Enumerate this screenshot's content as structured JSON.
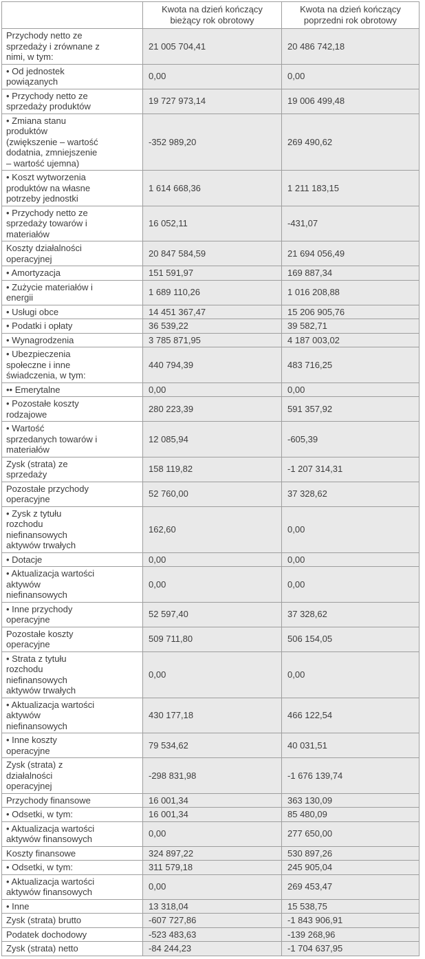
{
  "colors": {
    "value_cell_bg": "#e9e9e9",
    "label_cell_bg": "#ffffff",
    "border": "#9d9d9d",
    "text": "#3d3d3d"
  },
  "table": {
    "headers": {
      "label": "",
      "current": "Kwota na dzień kończący\nbieżący rok obrotowy",
      "previous": "Kwota na dzień kończący\npoprzedni rok obrotowy"
    },
    "rows": [
      {
        "label": "Przychody netto ze\nsprzedaży i zrównane z\nnimi, w tym:",
        "current": "21 005 704,41",
        "previous": "20 486 742,18"
      },
      {
        "label": "• Od jednostek\npowiązanych",
        "current": "0,00",
        "previous": "0,00"
      },
      {
        "label": "• Przychody netto ze\nsprzedaży produktów",
        "current": "19 727 973,14",
        "previous": "19 006 499,48"
      },
      {
        "label": "• Zmiana stanu\nproduktów\n(zwiększenie – wartość\ndodatnia, zmniejszenie\n– wartość ujemna)",
        "current": "-352 989,20",
        "previous": "269 490,62"
      },
      {
        "label": "• Koszt wytworzenia\nproduktów na własne\npotrzeby jednostki",
        "current": "1 614 668,36",
        "previous": "1 211 183,15"
      },
      {
        "label": "• Przychody netto ze\nsprzedaży towarów i\nmateriałów",
        "current": "16 052,11",
        "previous": "-431,07"
      },
      {
        "label": "Koszty działalności\noperacyjnej",
        "current": "20 847 584,59",
        "previous": "21 694 056,49"
      },
      {
        "label": "• Amortyzacja",
        "current": "151 591,97",
        "previous": "169 887,34"
      },
      {
        "label": "• Zużycie materiałów i\nenergii",
        "current": "1 689 110,26",
        "previous": "1 016 208,88"
      },
      {
        "label": "• Usługi obce",
        "current": "14 451 367,47",
        "previous": "15 206 905,76"
      },
      {
        "label": "• Podatki i opłaty",
        "current": "36 539,22",
        "previous": "39 582,71"
      },
      {
        "label": "• Wynagrodzenia",
        "current": "3 785 871,95",
        "previous": "4 187 003,02"
      },
      {
        "label": "• Ubezpieczenia\nspołeczne i inne\nświadczenia, w tym:",
        "current": "440 794,39",
        "previous": "483 716,25"
      },
      {
        "label": "•• Emerytalne",
        "current": "0,00",
        "previous": "0,00"
      },
      {
        "label": "• Pozostałe koszty\nrodzajowe",
        "current": "280 223,39",
        "previous": "591 357,92"
      },
      {
        "label": "• Wartość\nsprzedanych towarów i\nmateriałów",
        "current": "12 085,94",
        "previous": "-605,39"
      },
      {
        "label": "Zysk (strata) ze\nsprzedaży",
        "current": "158 119,82",
        "previous": "-1 207 314,31"
      },
      {
        "label": "Pozostałe przychody\noperacyjne",
        "current": "52 760,00",
        "previous": "37 328,62"
      },
      {
        "label": "• Zysk z tytułu\nrozchodu\nniefinansowych\naktywów trwałych",
        "current": "162,60",
        "previous": "0,00"
      },
      {
        "label": "• Dotacje",
        "current": "0,00",
        "previous": "0,00"
      },
      {
        "label": "• Aktualizacja wartości\naktywów\nniefinansowych",
        "current": "0,00",
        "previous": "0,00"
      },
      {
        "label": "• Inne przychody\noperacyjne",
        "current": "52 597,40",
        "previous": "37 328,62"
      },
      {
        "label": "Pozostałe koszty\noperacyjne",
        "current": "509 711,80",
        "previous": "506 154,05"
      },
      {
        "label": "• Strata z tytułu\nrozchodu\nniefinansowych\naktywów trwałych",
        "current": "0,00",
        "previous": "0,00"
      },
      {
        "label": "• Aktualizacja wartości\naktywów\nniefinansowych",
        "current": "430 177,18",
        "previous": "466 122,54"
      },
      {
        "label": "• Inne koszty\noperacyjne",
        "current": "79 534,62",
        "previous": "40 031,51"
      },
      {
        "label": "Zysk (strata) z\ndziałalności\noperacyjnej",
        "current": "-298 831,98",
        "previous": "-1 676 139,74"
      },
      {
        "label": "Przychody finansowe",
        "current": "16 001,34",
        "previous": "363 130,09"
      },
      {
        "label": "• Odsetki, w tym:",
        "current": "16 001,34",
        "previous": "85 480,09"
      },
      {
        "label": "• Aktualizacja wartości\naktywów finansowych",
        "current": "0,00",
        "previous": "277 650,00"
      },
      {
        "label": "Koszty finansowe",
        "current": "324 897,22",
        "previous": "530 897,26"
      },
      {
        "label": "• Odsetki, w tym:",
        "current": "311 579,18",
        "previous": "245 905,04"
      },
      {
        "label": "• Aktualizacja wartości\naktywów finansowych",
        "current": "0,00",
        "previous": "269 453,47"
      },
      {
        "label": "• Inne",
        "current": "13 318,04",
        "previous": "15 538,75"
      },
      {
        "label": "Zysk (strata) brutto",
        "current": "-607 727,86",
        "previous": "-1 843 906,91"
      },
      {
        "label": "Podatek dochodowy",
        "current": "-523 483,63",
        "previous": "-139 268,96"
      },
      {
        "label": "Zysk (strata) netto",
        "current": "-84 244,23",
        "previous": "-1 704 637,95"
      }
    ]
  }
}
